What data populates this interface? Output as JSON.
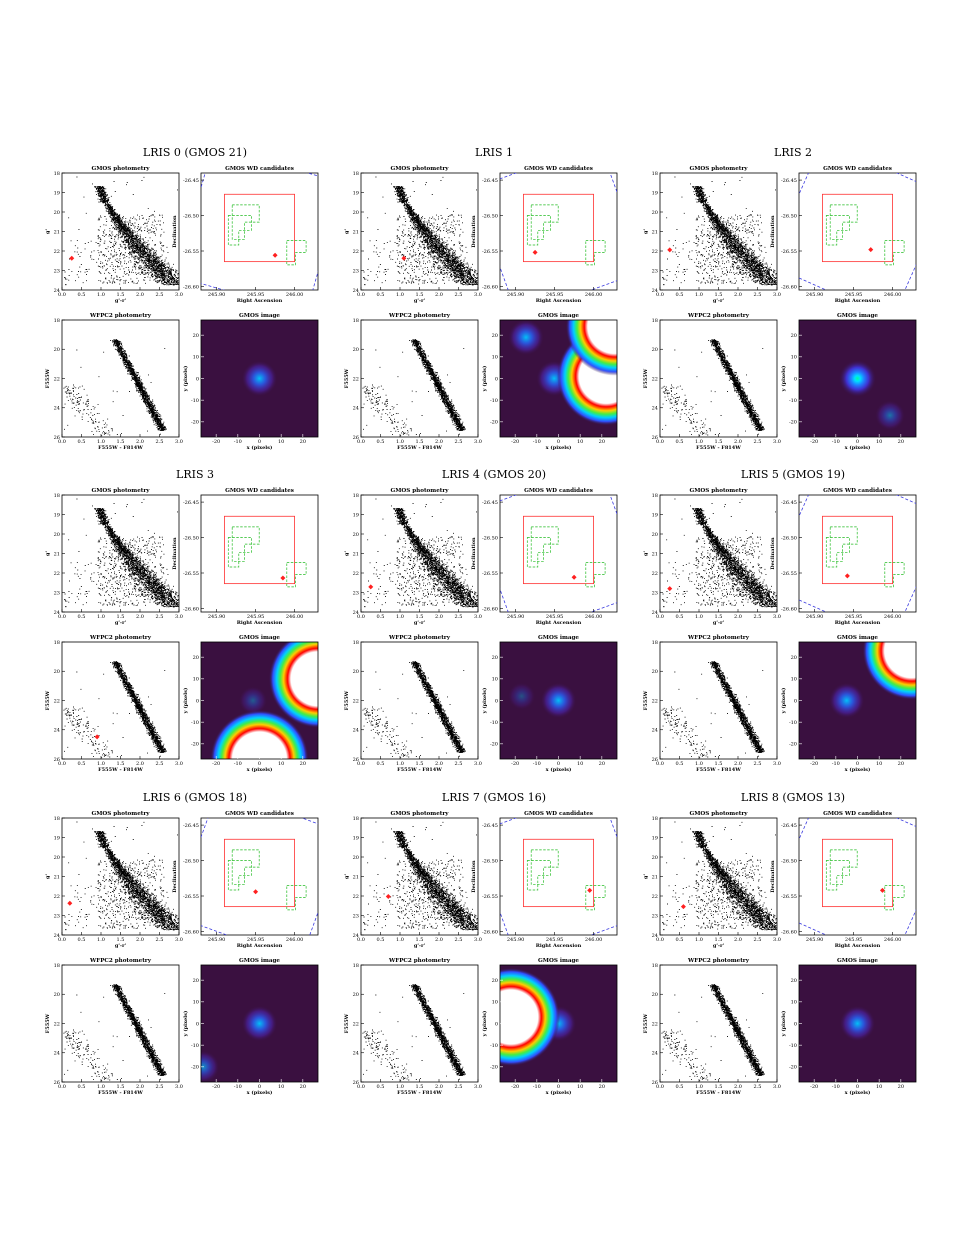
{
  "figure": {
    "subplot_titles": {
      "gmos_cmd": "GMOS photometry",
      "footprint": "GMOS WD candidates",
      "wfpc2_cmd": "WFPC2 photometry",
      "image": "GMOS image"
    },
    "axis_labels": {
      "gmos_cmd_x": "g'-r'",
      "gmos_cmd_y": "g'",
      "footprint_x": "Right Ascension",
      "footprint_y": "Declination",
      "wfpc2_cmd_x": "F555W - F814W",
      "wfpc2_cmd_y": "F555W",
      "image_x": "x (pixels)",
      "image_y": "y (pixels)"
    },
    "ticks": {
      "cmd_x": [
        "0.0",
        "0.5",
        "1.0",
        "1.5",
        "2.0",
        "2.5",
        "3.0"
      ],
      "gmos_cmd_y": [
        "18",
        "19",
        "20",
        "21",
        "22",
        "23",
        "24"
      ],
      "wfpc2_cmd_y": [
        "18",
        "20",
        "22",
        "24",
        "26"
      ],
      "footprint_x": [
        "245.90",
        "245.95",
        "246.00"
      ],
      "footprint_y": [
        "-26.45",
        "-26.50",
        "-26.55",
        "-26.60"
      ],
      "image_x": [
        "-20",
        "-10",
        "0",
        "10",
        "20"
      ],
      "image_y": [
        "20",
        "10",
        "0",
        "-10",
        "-20"
      ]
    },
    "colors": {
      "candidate_marker": "#ff2020",
      "lris_slitmask": "#ff3030",
      "gmos_field": "#3a3adf",
      "wfpc2_footprint": "#22bb22",
      "image_background": "#3a1040"
    }
  },
  "panels": [
    {
      "title": "LRIS 0  (GMOS 21)",
      "gmos_marker": {
        "color": 0.25,
        "mag": 22.6
      },
      "wfpc2_marker": null,
      "footprint_marker": {
        "ra": 245.975,
        "dec": -26.556
      },
      "field_rotation_deg": 16,
      "image_sources": [
        {
          "x": 0,
          "y": 0,
          "strength": 0.8
        }
      ]
    },
    {
      "title": "LRIS 1",
      "gmos_marker": {
        "color": 1.1,
        "mag": 22.6
      },
      "wfpc2_marker": null,
      "footprint_marker": {
        "ra": 245.925,
        "dec": -26.552
      },
      "field_rotation_deg": -20,
      "image_sources": [
        {
          "x": -15,
          "y": 19,
          "strength": 0.8
        },
        {
          "x": -2,
          "y": 0,
          "strength": 0.8
        },
        {
          "x": 22,
          "y": 1,
          "strength": 3.0
        },
        {
          "x": 26,
          "y": 24,
          "strength": 3.0
        }
      ]
    },
    {
      "title": "LRIS 2",
      "gmos_marker": {
        "color": 0.25,
        "mag": 22.1
      },
      "wfpc2_marker": null,
      "footprint_marker": {
        "ra": 245.972,
        "dec": -26.548
      },
      "field_rotation_deg": 24,
      "image_sources": [
        {
          "x": 0,
          "y": 0,
          "strength": 1.1
        },
        {
          "x": 15,
          "y": -17,
          "strength": 0.45
        }
      ]
    },
    {
      "title": "LRIS 3",
      "gmos_marker": null,
      "wfpc2_marker": {
        "color": 0.9,
        "mag": 24.8
      },
      "footprint_marker": {
        "ra": 245.985,
        "dec": -26.557
      },
      "field_rotation_deg": 0,
      "image_sources": [
        {
          "x": 27,
          "y": 10,
          "strength": 3.0
        },
        {
          "x": 0,
          "y": -27,
          "strength": 3.0
        },
        {
          "x": -3,
          "y": 0,
          "strength": 0.35
        }
      ]
    },
    {
      "title": "LRIS 4  (GMOS 20)",
      "gmos_marker": {
        "color": 0.25,
        "mag": 23.0
      },
      "wfpc2_marker": null,
      "footprint_marker": {
        "ra": 245.975,
        "dec": -26.556
      },
      "field_rotation_deg": -20,
      "image_sources": [
        {
          "x": 0,
          "y": 0,
          "strength": 0.8
        },
        {
          "x": -17,
          "y": 2,
          "strength": 0.3
        }
      ]
    },
    {
      "title": "LRIS 5  (GMOS 19)",
      "gmos_marker": {
        "color": 0.25,
        "mag": 23.1
      },
      "wfpc2_marker": null,
      "footprint_marker": {
        "ra": 245.942,
        "dec": -26.554
      },
      "field_rotation_deg": 24,
      "image_sources": [
        {
          "x": -5,
          "y": 0,
          "strength": 0.8
        },
        {
          "x": 25,
          "y": 23,
          "strength": 3.0
        }
      ]
    },
    {
      "title": "LRIS 6  (GMOS 18)",
      "gmos_marker": {
        "color": 0.2,
        "mag": 22.6
      },
      "wfpc2_marker": null,
      "footprint_marker": {
        "ra": 245.95,
        "dec": -26.544
      },
      "field_rotation_deg": 20,
      "image_sources": [
        {
          "x": 0,
          "y": 0,
          "strength": 0.8
        },
        {
          "x": -26,
          "y": -20,
          "strength": 0.6
        }
      ]
    },
    {
      "title": "LRIS 7  (GMOS 16)",
      "gmos_marker": {
        "color": 0.7,
        "mag": 22.2
      },
      "wfpc2_marker": null,
      "footprint_marker": {
        "ra": 245.995,
        "dec": -26.542
      },
      "field_rotation_deg": -20,
      "image_sources": [
        {
          "x": 0,
          "y": 0,
          "strength": 0.8
        },
        {
          "x": -22,
          "y": 3,
          "strength": 3.0
        }
      ]
    },
    {
      "title": "LRIS 8  (GMOS 13)",
      "gmos_marker": {
        "color": 0.6,
        "mag": 22.8
      },
      "wfpc2_marker": null,
      "footprint_marker": {
        "ra": 245.987,
        "dec": -26.542
      },
      "field_rotation_deg": 24,
      "image_sources": [
        {
          "x": 0,
          "y": 0,
          "strength": 0.8
        }
      ]
    }
  ]
}
